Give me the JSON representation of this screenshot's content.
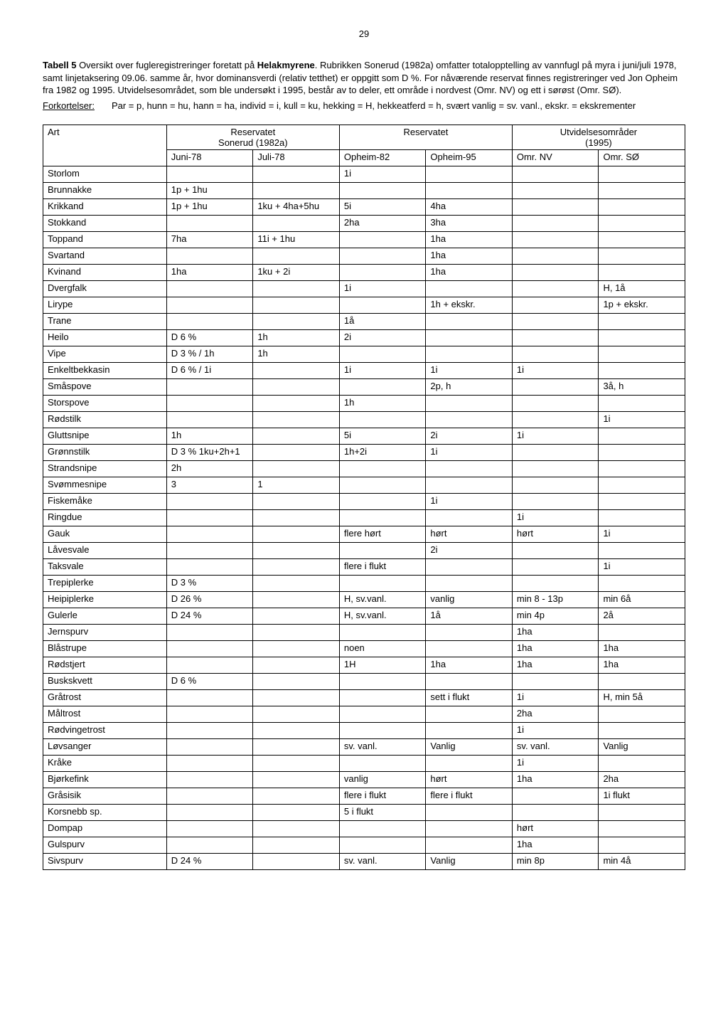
{
  "page_number": "29",
  "caption": {
    "label": "Tabell 5",
    "text_before_bold": " Oversikt over fugleregistreringer foretatt på ",
    "bold_word": "Helakmyrene",
    "text_after_bold": ". Rubrikken Sonerud (1982a) omfatter totalopptelling av vannfugl på myra i juni/juli 1978, samt linjetaksering 09.06. samme år, hvor dominansverdi (relativ tetthet) er oppgitt som D %. For nåværende reservat finnes registreringer ved Jon Opheim fra 1982 og 1995. Utvidelsesområdet, som ble undersøkt i 1995, består av to deler, ett område i nordvest (Omr. NV) og ett i sørøst (Omr. SØ).",
    "fork_label": "Forkortelser:",
    "fork_text": "Par = p, hunn = hu, hann = ha, individ = i, kull = ku, hekking = H, hekkeatferd = h, svært vanlig = sv. vanl., ekskr. = ekskrementer"
  },
  "table": {
    "header_top": {
      "art": "Art",
      "reservatet1": "Reservatet",
      "sonerud": "Sonerud (1982a)",
      "reservatet2": "Reservatet",
      "utv": "Utvidelsesområder",
      "year": "(1995)"
    },
    "header_cols": [
      "Juni-78",
      "Juli-78",
      "Opheim-82",
      "Opheim-95",
      "Omr. NV",
      "Omr. SØ"
    ],
    "rows": [
      {
        "art": "Storlom",
        "c": [
          "",
          "",
          "1i",
          "",
          "",
          ""
        ]
      },
      {
        "art": "Brunnakke",
        "c": [
          "1p + 1hu",
          "",
          "",
          "",
          "",
          ""
        ]
      },
      {
        "art": "Krikkand",
        "c": [
          "1p + 1hu",
          "1ku + 4ha+5hu",
          "5i",
          "4ha",
          "",
          ""
        ]
      },
      {
        "art": "Stokkand",
        "c": [
          "",
          "",
          "2ha",
          "3ha",
          "",
          ""
        ]
      },
      {
        "art": "Toppand",
        "c": [
          "7ha",
          "11i + 1hu",
          "",
          "1ha",
          "",
          ""
        ]
      },
      {
        "art": "Svartand",
        "c": [
          "",
          "",
          "",
          "1ha",
          "",
          ""
        ]
      },
      {
        "art": "Kvinand",
        "c": [
          "1ha",
          "1ku + 2i",
          "",
          "1ha",
          "",
          ""
        ]
      },
      {
        "art": "Dvergfalk",
        "c": [
          "",
          "",
          "1i",
          "",
          "",
          "H, 1å"
        ]
      },
      {
        "art": "Lirype",
        "c": [
          "",
          "",
          "",
          "1h + ekskr.",
          "",
          "1p + ekskr."
        ]
      },
      {
        "art": "Trane",
        "c": [
          "",
          "",
          "1å",
          "",
          "",
          ""
        ]
      },
      {
        "art": "Heilo",
        "c": [
          "D 6 %",
          "1h",
          "2i",
          "",
          "",
          ""
        ]
      },
      {
        "art": "Vipe",
        "c": [
          "D 3 % / 1h",
          "1h",
          "",
          "",
          "",
          ""
        ]
      },
      {
        "art": "Enkeltbekkasin",
        "c": [
          "D 6 % / 1i",
          "",
          "1i",
          "1i",
          "1i",
          ""
        ]
      },
      {
        "art": "Småspove",
        "c": [
          "",
          "",
          "",
          "2p, h",
          "",
          "3å, h"
        ]
      },
      {
        "art": "Storspove",
        "c": [
          "",
          "",
          "1h",
          "",
          "",
          ""
        ]
      },
      {
        "art": "Rødstilk",
        "c": [
          "",
          "",
          "",
          "",
          "",
          "1i"
        ]
      },
      {
        "art": "Gluttsnipe",
        "c": [
          "1h",
          "",
          "5i",
          "2i",
          "1i",
          ""
        ]
      },
      {
        "art": "Grønnstilk",
        "c": [
          "D 3 % 1ku+2h+1",
          "",
          "1h+2i",
          "1i",
          "",
          ""
        ]
      },
      {
        "art": "Strandsnipe",
        "c": [
          "2h",
          "",
          "",
          "",
          "",
          ""
        ]
      },
      {
        "art": "Svømmesnipe",
        "c": [
          "3",
          "1",
          "",
          "",
          "",
          ""
        ]
      },
      {
        "art": "Fiskemåke",
        "c": [
          "",
          "",
          "",
          "1i",
          "",
          ""
        ]
      },
      {
        "art": "Ringdue",
        "c": [
          "",
          "",
          "",
          "",
          "1i",
          ""
        ]
      },
      {
        "art": "Gauk",
        "c": [
          "",
          "",
          "flere hørt",
          "hørt",
          "hørt",
          "1i"
        ]
      },
      {
        "art": "Låvesvale",
        "c": [
          "",
          "",
          "",
          "2i",
          "",
          ""
        ]
      },
      {
        "art": "Taksvale",
        "c": [
          "",
          "",
          "flere i flukt",
          "",
          "",
          "1i"
        ]
      },
      {
        "art": "Trepiplerke",
        "c": [
          "D 3 %",
          "",
          "",
          "",
          "",
          ""
        ]
      },
      {
        "art": "Heipiplerke",
        "c": [
          "D 26 %",
          "",
          "H, sv.vanl.",
          "vanlig",
          "min 8 - 13p",
          "min 6å"
        ]
      },
      {
        "art": "Gulerle",
        "c": [
          "D 24 %",
          "",
          "H, sv.vanl.",
          "1å",
          "min 4p",
          "2å"
        ]
      },
      {
        "art": "Jernspurv",
        "c": [
          "",
          "",
          "",
          "",
          "1ha",
          ""
        ]
      },
      {
        "art": "Blåstrupe",
        "c": [
          "",
          "",
          "noen",
          "",
          "1ha",
          "1ha"
        ]
      },
      {
        "art": "Rødstjert",
        "c": [
          "",
          "",
          "1H",
          "1ha",
          "1ha",
          "1ha"
        ]
      },
      {
        "art": "Buskskvett",
        "c": [
          "D 6 %",
          "",
          "",
          "",
          "",
          ""
        ]
      },
      {
        "art": "Gråtrost",
        "c": [
          "",
          "",
          "",
          "sett i flukt",
          "1i",
          "H, min 5å"
        ]
      },
      {
        "art": "Måltrost",
        "c": [
          "",
          "",
          "",
          "",
          "2ha",
          ""
        ]
      },
      {
        "art": "Rødvingetrost",
        "c": [
          "",
          "",
          "",
          "",
          "1i",
          ""
        ]
      },
      {
        "art": "Løvsanger",
        "c": [
          "",
          "",
          "sv. vanl.",
          "Vanlig",
          "sv. vanl.",
          "Vanlig"
        ]
      },
      {
        "art": "Kråke",
        "c": [
          "",
          "",
          "",
          "",
          "1i",
          ""
        ]
      },
      {
        "art": "Bjørkefink",
        "c": [
          "",
          "",
          "vanlig",
          "hørt",
          "1ha",
          "2ha"
        ]
      },
      {
        "art": "Gråsisik",
        "c": [
          "",
          "",
          "flere i flukt",
          "flere i flukt",
          "",
          "1i flukt"
        ]
      },
      {
        "art": "Korsnebb sp.",
        "c": [
          "",
          "",
          "5 i flukt",
          "",
          "",
          ""
        ]
      },
      {
        "art": "Dompap",
        "c": [
          "",
          "",
          "",
          "",
          "hørt",
          ""
        ]
      },
      {
        "art": "Gulspurv",
        "c": [
          "",
          "",
          "",
          "",
          "1ha",
          ""
        ]
      },
      {
        "art": "Sivspurv",
        "c": [
          "D 24 %",
          "",
          "sv. vanl.",
          "Vanlig",
          "min 8p",
          "min 4å"
        ]
      }
    ]
  }
}
